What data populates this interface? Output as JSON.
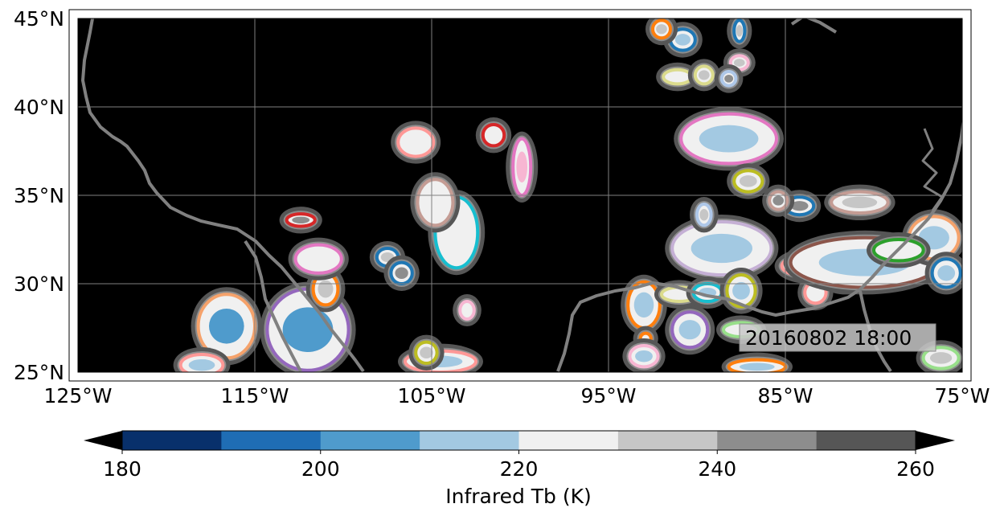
{
  "map": {
    "lon_range": [
      -125,
      -75
    ],
    "lat_range": [
      25,
      45
    ],
    "x_ticks": [
      {
        "lon": -125,
        "label": "125°W"
      },
      {
        "lon": -115,
        "label": "115°W"
      },
      {
        "lon": -105,
        "label": "105°W"
      },
      {
        "lon": -95,
        "label": "95°W"
      },
      {
        "lon": -85,
        "label": "85°W"
      },
      {
        "lon": -75,
        "label": "75°W"
      }
    ],
    "y_ticks": [
      {
        "lat": 45,
        "label": "45°N"
      },
      {
        "lat": 40,
        "label": "40°N"
      },
      {
        "lat": 35,
        "label": "35°N"
      },
      {
        "lat": 30,
        "label": "30°N"
      },
      {
        "lat": 25,
        "label": "25°N"
      }
    ],
    "timestamp": "20160802 18:00",
    "background_color": "#000000",
    "coastline_color": "#808080"
  },
  "colorbar": {
    "label": "Infrared Tb (K)",
    "tick_labels": [
      "180",
      "200",
      "220",
      "240",
      "260"
    ],
    "colors": [
      "#08306b",
      "#1f6db4",
      "#4f9bcc",
      "#a3c9e2",
      "#f0f0f0",
      "#c6c6c6",
      "#8d8d8d",
      "#565656"
    ],
    "extend_low_color": "#000000",
    "extend_high_color": "#000000",
    "range": [
      180,
      260
    ]
  },
  "chart_data": {
    "type": "heatmap",
    "title": "",
    "xlabel": "",
    "ylabel": "",
    "variable": "Infrared Tb (K)",
    "levels": [
      180,
      190,
      200,
      210,
      220,
      230,
      240,
      250,
      260
    ],
    "xlim": [
      -125,
      -75
    ],
    "ylim": [
      25,
      45
    ],
    "valid_time": "20160802 18:00"
  },
  "cloud_systems": [
    {
      "lon": -116.6,
      "lat": 27.6,
      "rx": 1.6,
      "ry": 1.8,
      "outline": "#f5a26b",
      "core": "#4f9bcc"
    },
    {
      "lon": -112.0,
      "lat": 27.4,
      "rx": 2.3,
      "ry": 2.3,
      "outline": "#9467bd",
      "core": "#4f9bcc"
    },
    {
      "lon": -111.0,
      "lat": 29.7,
      "rx": 0.7,
      "ry": 0.9,
      "outline": "#ff7f0e",
      "core": "#c6c6c6"
    },
    {
      "lon": -111.4,
      "lat": 31.4,
      "rx": 1.3,
      "ry": 0.8,
      "outline": "#e377c2",
      "core": "#f0f0f0"
    },
    {
      "lon": -118.0,
      "lat": 25.4,
      "rx": 1.2,
      "ry": 0.6,
      "outline": "#ff9896",
      "core": "#a3c9e2"
    },
    {
      "lon": -112.4,
      "lat": 33.6,
      "rx": 0.8,
      "ry": 0.35,
      "outline": "#d62728",
      "core": "#8d8d8d"
    },
    {
      "lon": -107.5,
      "lat": 31.5,
      "rx": 0.6,
      "ry": 0.5,
      "outline": "#1f77b4",
      "core": "#c6c6c6"
    },
    {
      "lon": -106.7,
      "lat": 30.6,
      "rx": 0.6,
      "ry": 0.6,
      "outline": "#1f77b4",
      "core": "#8d8d8d"
    },
    {
      "lon": -105.9,
      "lat": 38.0,
      "rx": 1.0,
      "ry": 0.8,
      "outline": "#ff9896",
      "core": "#f0f0f0"
    },
    {
      "lon": -103.6,
      "lat": 32.9,
      "rx": 1.2,
      "ry": 2.0,
      "outline": "#17becf",
      "core": "#f0f0f0"
    },
    {
      "lon": -104.8,
      "lat": 34.6,
      "rx": 1.0,
      "ry": 1.3,
      "outline": "#c49c94",
      "core": "#f0f0f0"
    },
    {
      "lon": -101.5,
      "lat": 38.4,
      "rx": 0.6,
      "ry": 0.6,
      "outline": "#d62728",
      "core": "#f0f0f0"
    },
    {
      "lon": -99.9,
      "lat": 36.6,
      "rx": 0.5,
      "ry": 1.6,
      "outline": "#e377c2",
      "core": "#f7b6d2"
    },
    {
      "lon": -103.0,
      "lat": 28.5,
      "rx": 0.4,
      "ry": 0.5,
      "outline": "#f7b6d2",
      "core": "#f0f0f0"
    },
    {
      "lon": -104.5,
      "lat": 25.6,
      "rx": 2.0,
      "ry": 0.6,
      "outline": "#ff9896",
      "core": "#a3c9e2"
    },
    {
      "lon": -105.3,
      "lat": 26.1,
      "rx": 0.6,
      "ry": 0.6,
      "outline": "#bcbd22",
      "core": "#c6c6c6"
    },
    {
      "lon": -88.2,
      "lat": 38.2,
      "rx": 2.7,
      "ry": 1.4,
      "outline": "#e377c2",
      "core": "#a3c9e2"
    },
    {
      "lon": -87.1,
      "lat": 35.8,
      "rx": 0.8,
      "ry": 0.6,
      "outline": "#bcbd22",
      "core": "#c6c6c6"
    },
    {
      "lon": -88.6,
      "lat": 32.0,
      "rx": 2.8,
      "ry": 1.5,
      "outline": "#c5b0d5",
      "core": "#a3c9e2"
    },
    {
      "lon": -89.6,
      "lat": 33.9,
      "rx": 0.4,
      "ry": 0.6,
      "outline": "#aec7e8",
      "core": "#c6c6c6"
    },
    {
      "lon": -93.0,
      "lat": 28.8,
      "rx": 0.9,
      "ry": 1.3,
      "outline": "#ff7f0e",
      "core": "#a3c9e2"
    },
    {
      "lon": -92.9,
      "lat": 26.9,
      "rx": 0.3,
      "ry": 0.3,
      "outline": "#ff7f0e",
      "core": "#f0f0f0"
    },
    {
      "lon": -93.0,
      "lat": 25.9,
      "rx": 0.8,
      "ry": 0.6,
      "outline": "#f7b6d2",
      "core": "#a3c9e2"
    },
    {
      "lon": -90.4,
      "lat": 27.4,
      "rx": 1.0,
      "ry": 1.0,
      "outline": "#9467bd",
      "core": "#a3c9e2"
    },
    {
      "lon": -91.0,
      "lat": 29.4,
      "rx": 1.0,
      "ry": 0.4,
      "outline": "#dbdb8d",
      "core": "#f0f0f0"
    },
    {
      "lon": -89.4,
      "lat": 29.5,
      "rx": 0.8,
      "ry": 0.5,
      "outline": "#17becf",
      "core": "#a3c9e2"
    },
    {
      "lon": -87.5,
      "lat": 29.6,
      "rx": 0.8,
      "ry": 0.9,
      "outline": "#bcbd22",
      "core": "#a3c9e2"
    },
    {
      "lon": -87.5,
      "lat": 27.4,
      "rx": 1.0,
      "ry": 0.4,
      "outline": "#98df8a",
      "core": "#f0f0f0"
    },
    {
      "lon": -86.6,
      "lat": 25.3,
      "rx": 1.6,
      "ry": 0.4,
      "outline": "#ff7f0e",
      "core": "#a3c9e2"
    },
    {
      "lon": -83.6,
      "lat": 31.0,
      "rx": 1.6,
      "ry": 0.6,
      "outline": "#ff9896",
      "core": "#c6c6c6"
    },
    {
      "lon": -81.6,
      "lat": 30.4,
      "rx": 1.2,
      "ry": 0.6,
      "outline": "#1f77b4",
      "core": "#f0f0f0"
    },
    {
      "lon": -83.3,
      "lat": 29.5,
      "rx": 0.6,
      "ry": 0.6,
      "outline": "#ff9896",
      "core": "#f0f0f0"
    },
    {
      "lon": -80.5,
      "lat": 31.2,
      "rx": 4.2,
      "ry": 1.4,
      "outline": "#8c564b",
      "core": "#a3c9e2"
    },
    {
      "lon": -76.6,
      "lat": 32.6,
      "rx": 1.4,
      "ry": 1.2,
      "outline": "#f5a26b",
      "core": "#a3c9e2"
    },
    {
      "lon": -78.6,
      "lat": 31.9,
      "rx": 1.4,
      "ry": 0.6,
      "outline": "#2ca02c",
      "core": "#f0f0f0"
    },
    {
      "lon": -75.9,
      "lat": 30.6,
      "rx": 0.8,
      "ry": 0.8,
      "outline": "#1f77b4",
      "core": "#a3c9e2"
    },
    {
      "lon": -76.2,
      "lat": 25.8,
      "rx": 1.0,
      "ry": 0.6,
      "outline": "#98df8a",
      "core": "#c6c6c6"
    },
    {
      "lon": -80.8,
      "lat": 34.6,
      "rx": 1.6,
      "ry": 0.6,
      "outline": "#c49c94",
      "core": "#c6c6c6"
    },
    {
      "lon": -84.2,
      "lat": 34.4,
      "rx": 0.8,
      "ry": 0.5,
      "outline": "#1f77b4",
      "core": "#8d8d8d"
    },
    {
      "lon": -85.4,
      "lat": 34.7,
      "rx": 0.5,
      "ry": 0.5,
      "outline": "#c49c94",
      "core": "#8d8d8d"
    },
    {
      "lon": -90.8,
      "lat": 43.8,
      "rx": 0.7,
      "ry": 0.6,
      "outline": "#1f77b4",
      "core": "#a3c9e2"
    },
    {
      "lon": -92.0,
      "lat": 44.4,
      "rx": 0.5,
      "ry": 0.5,
      "outline": "#ff7f0e",
      "core": "#c6c6c6"
    },
    {
      "lon": -87.6,
      "lat": 44.3,
      "rx": 0.3,
      "ry": 0.6,
      "outline": "#1f77b4",
      "core": "#c6c6c6"
    },
    {
      "lon": -91.1,
      "lat": 41.7,
      "rx": 0.8,
      "ry": 0.4,
      "outline": "#dbdb8d",
      "core": "#f0f0f0"
    },
    {
      "lon": -89.6,
      "lat": 41.8,
      "rx": 0.5,
      "ry": 0.5,
      "outline": "#dbdb8d",
      "core": "#c6c6c6"
    },
    {
      "lon": -87.6,
      "lat": 42.5,
      "rx": 0.5,
      "ry": 0.4,
      "outline": "#f7b6d2",
      "core": "#c6c6c6"
    },
    {
      "lon": -88.2,
      "lat": 41.6,
      "rx": 0.4,
      "ry": 0.4,
      "outline": "#aec7e8",
      "core": "#8d8d8d"
    }
  ]
}
